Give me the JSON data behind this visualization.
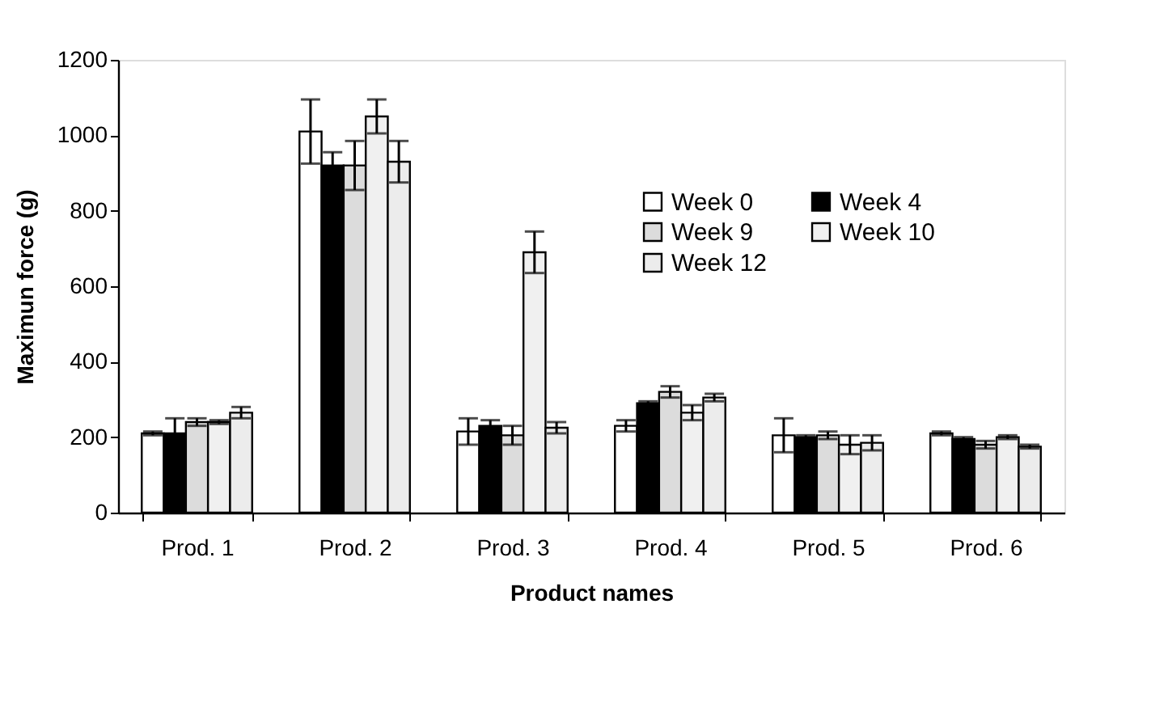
{
  "chart_data": {
    "type": "bar",
    "xlabel": "Product names",
    "ylabel": "Maximun force (g)",
    "categories": [
      "Prod. 1",
      "Prod. 2",
      "Prod. 3",
      "Prod. 4",
      "Prod. 5",
      "Prod. 6"
    ],
    "series": [
      {
        "name": "Week 0",
        "color": "#ffffff",
        "values": [
          210,
          1010,
          215,
          230,
          205,
          210
        ],
        "errors": [
          5,
          85,
          35,
          15,
          45,
          5
        ]
      },
      {
        "name": "Week 4",
        "color": "#000000",
        "values": [
          210,
          920,
          230,
          290,
          200,
          195
        ],
        "errors": [
          40,
          35,
          15,
          5,
          5,
          5
        ]
      },
      {
        "name": "Week 9",
        "color": "#dcdcdc",
        "values": [
          240,
          920,
          205,
          320,
          205,
          180
        ],
        "errors": [
          10,
          65,
          25,
          15,
          10,
          10
        ]
      },
      {
        "name": "Week 10",
        "color": "#f0f0f0",
        "values": [
          240,
          1050,
          690,
          265,
          180,
          200
        ],
        "errors": [
          5,
          45,
          55,
          20,
          25,
          5
        ]
      },
      {
        "name": "Week 12",
        "color": "#ececec",
        "values": [
          265,
          930,
          225,
          305,
          185,
          175
        ],
        "errors": [
          15,
          55,
          15,
          10,
          20,
          5
        ]
      }
    ],
    "ylim": [
      0,
      1200
    ],
    "yticks": [
      0,
      200,
      400,
      600,
      800,
      1000,
      1200
    ],
    "grid": false,
    "legend": "top right"
  }
}
